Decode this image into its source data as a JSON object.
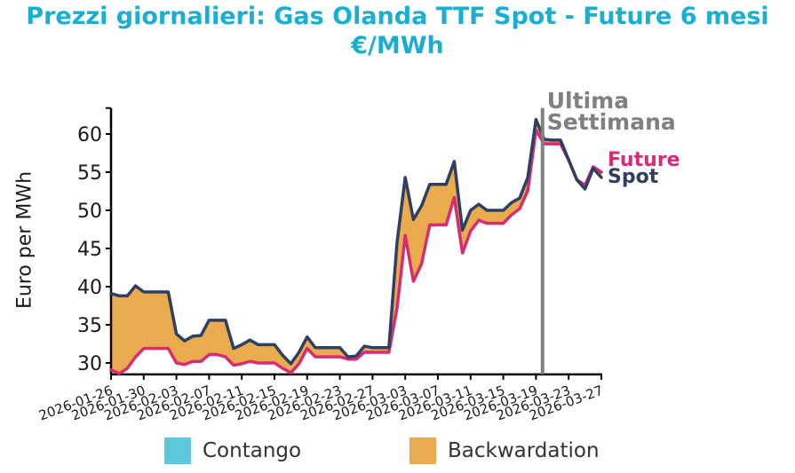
{
  "title_line1": "Prezzi giornalieri: Gas Olanda TTF Spot - Future 6 mesi",
  "title_line2": "€/MWh",
  "colors": {
    "title": "#1AAFD0",
    "spot": "#2E3F63",
    "future": "#D62C73",
    "backwardation": "#EAAB4C",
    "contango": "#5BC8DC",
    "last_week_line": "#808080"
  },
  "annotation": {
    "line1": "Ultima",
    "line2": "Settimana"
  },
  "end_labels": {
    "future": "Future",
    "spot": "Spot"
  },
  "legend": [
    {
      "label": "Contango",
      "color": "#5BC8DC"
    },
    {
      "label": "Backwardation",
      "color": "#EAAB4C"
    }
  ],
  "chart_data": {
    "type": "line",
    "title": "Prezzi giornalieri: Gas Olanda TTF Spot - Future 6 mesi €/MWh",
    "xlabel": "",
    "ylabel": "Euro per MWh",
    "ylim": [
      28.5,
      63.4
    ],
    "yticks": [
      30,
      35,
      40,
      45,
      50,
      55,
      60
    ],
    "xticks": [
      "2026-01-26",
      "2026-01-30",
      "2026-02-03",
      "2026-02-07",
      "2026-02-11",
      "2026-02-15",
      "2026-02-19",
      "2026-02-23",
      "2026-02-27",
      "2026-03-03",
      "2026-03-07",
      "2026-03-11",
      "2026-03-15",
      "2026-03-19",
      "2026-03-23",
      "2026-03-27"
    ],
    "x_start": "2026-01-26",
    "x_end": "2026-03-27",
    "grid": false,
    "legend_position": "bottom",
    "vertical_marker": {
      "date_index": 52.8,
      "label": "Ultima Settimana"
    },
    "fill_between": {
      "spot_above_future": "Backwardation",
      "future_above_spot": "Contango"
    },
    "series": [
      {
        "name": "Spot",
        "values": [
          39.1,
          38.8,
          38.8,
          40.1,
          39.3,
          39.3,
          39.3,
          39.3,
          33.8,
          32.9,
          33.5,
          33.6,
          35.6,
          35.6,
          35.6,
          31.9,
          32.4,
          33.0,
          32.4,
          32.4,
          32.4,
          31.0,
          29.9,
          31.4,
          33.4,
          32.0,
          32.0,
          32.0,
          32.0,
          30.8,
          30.9,
          32.2,
          32.0,
          32.0,
          32.0,
          45.8,
          54.3,
          48.8,
          50.6,
          53.4,
          53.4,
          53.4,
          56.4,
          47.4,
          50.0,
          50.8,
          50.0,
          50.0,
          50.0,
          51.0,
          51.6,
          54.3,
          61.9,
          59.3,
          59.2,
          59.2,
          56.6,
          54.0,
          52.8,
          55.5,
          54.3
        ]
      },
      {
        "name": "Future",
        "values": [
          29.1,
          28.6,
          29.3,
          30.8,
          31.9,
          31.9,
          31.9,
          31.9,
          30.0,
          29.8,
          30.2,
          30.2,
          31.1,
          31.1,
          30.8,
          29.7,
          29.9,
          30.2,
          30.0,
          30.0,
          30.0,
          29.3,
          28.7,
          29.9,
          31.9,
          30.8,
          30.8,
          30.8,
          30.8,
          30.5,
          30.5,
          31.4,
          31.4,
          31.4,
          31.4,
          37.2,
          46.7,
          40.7,
          43.0,
          48.1,
          48.1,
          48.1,
          51.7,
          44.4,
          47.3,
          48.7,
          48.3,
          48.3,
          48.3,
          49.4,
          50.2,
          52.6,
          60.5,
          58.7,
          58.7,
          58.7,
          56.6,
          54.0,
          53.3,
          55.7,
          55.0
        ]
      }
    ]
  }
}
